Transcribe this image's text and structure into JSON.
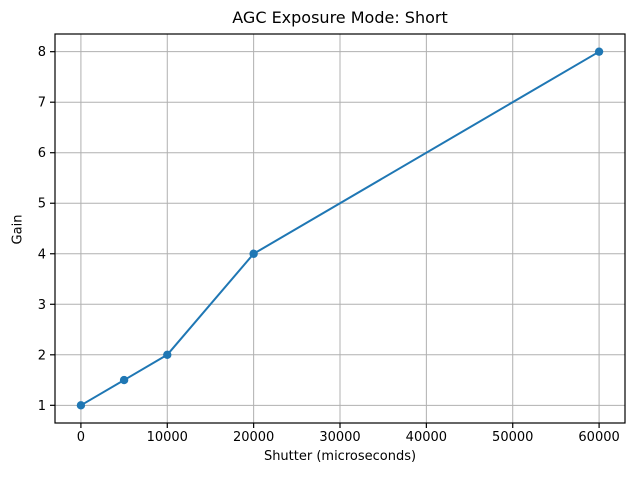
{
  "chart_data": {
    "type": "line",
    "title": "AGC Exposure Mode: Short",
    "xlabel": "Shutter (microseconds)",
    "ylabel": "Gain",
    "x": [
      0,
      5000,
      10000,
      20000,
      60000
    ],
    "y": [
      1,
      1.5,
      2,
      4,
      8
    ],
    "xticks": [
      0,
      10000,
      20000,
      30000,
      40000,
      50000,
      60000
    ],
    "xtick_labels": [
      "0",
      "10000",
      "20000",
      "30000",
      "40000",
      "50000",
      "60000"
    ],
    "yticks": [
      1,
      2,
      3,
      4,
      5,
      6,
      7,
      8
    ],
    "ytick_labels": [
      "1",
      "2",
      "3",
      "4",
      "5",
      "6",
      "7",
      "8"
    ],
    "xlim": [
      -3000,
      63000
    ],
    "ylim": [
      0.65,
      8.35
    ],
    "grid": true,
    "legend": "none",
    "marker": "circle",
    "colors": {
      "line": "#1f77b4",
      "marker": "#1f77b4",
      "grid": "#b0b0b0",
      "spine": "#000000",
      "tick_label": "#000000",
      "background": "#ffffff"
    }
  }
}
